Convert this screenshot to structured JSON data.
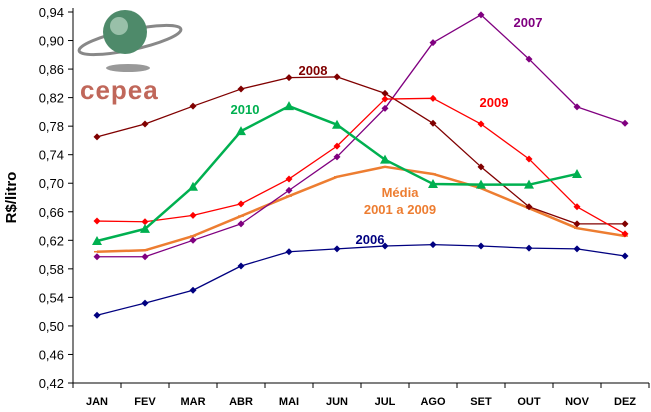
{
  "chart_data": {
    "type": "line",
    "title": "",
    "xlabel": "",
    "ylabel": "R$/litro",
    "ylim": [
      0.42,
      0.94
    ],
    "yticks": [
      "0,42",
      "0,46",
      "0,50",
      "0,54",
      "0,58",
      "0,62",
      "0,66",
      "0,70",
      "0,74",
      "0,78",
      "0,82",
      "0,86",
      "0,90",
      "0,94"
    ],
    "categories": [
      "JAN",
      "FEV",
      "MAR",
      "ABR",
      "MAI",
      "JUN",
      "JUL",
      "AGO",
      "SET",
      "OUT",
      "NOV",
      "DEZ"
    ],
    "grid": false,
    "logo_text": "CEPEA",
    "series": [
      {
        "name": "2006",
        "label": "2006",
        "color": "#000080",
        "marker": "diamond",
        "width": 1.3,
        "values": [
          0.515,
          0.532,
          0.55,
          0.584,
          0.604,
          0.608,
          0.612,
          0.614,
          0.612,
          0.609,
          0.608,
          0.598
        ]
      },
      {
        "name": "2007",
        "label": "2007",
        "color": "#800080",
        "marker": "diamond",
        "width": 1.3,
        "values": [
          0.597,
          0.597,
          0.62,
          0.643,
          0.69,
          0.737,
          0.805,
          0.897,
          0.936,
          0.874,
          0.807,
          0.784
        ]
      },
      {
        "name": "2008",
        "label": "2008",
        "color": "#800000",
        "marker": "diamond",
        "width": 1.3,
        "values": [
          0.765,
          0.783,
          0.808,
          0.832,
          0.848,
          0.849,
          0.826,
          0.784,
          0.723,
          0.667,
          0.643,
          0.643
        ]
      },
      {
        "name": "2009",
        "label": "2009",
        "color": "#ff0000",
        "marker": "diamond",
        "width": 1.3,
        "values": [
          0.647,
          0.646,
          0.655,
          0.671,
          0.706,
          0.752,
          0.818,
          0.819,
          0.783,
          0.734,
          0.667,
          0.629
        ]
      },
      {
        "name": "2010",
        "label": "2010",
        "color": "#00b050",
        "marker": "triangle",
        "width": 2.5,
        "values": [
          0.619,
          0.636,
          0.695,
          0.773,
          0.808,
          0.782,
          0.733,
          0.699,
          0.698,
          0.698,
          0.713,
          null
        ]
      },
      {
        "name": "Média 2001 a 2009",
        "label": "Média",
        "label2": "2001 a 2009",
        "color": "#ed7d31",
        "marker": "dash",
        "width": 2.5,
        "values": [
          0.604,
          0.606,
          0.626,
          0.654,
          0.682,
          0.709,
          0.723,
          0.713,
          0.693,
          0.665,
          0.637,
          0.626
        ]
      }
    ]
  }
}
